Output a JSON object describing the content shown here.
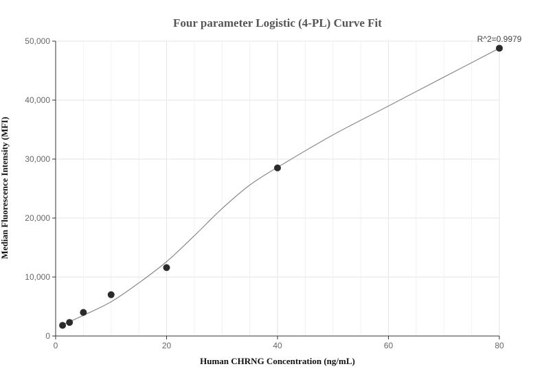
{
  "chart_data": {
    "type": "scatter",
    "title": "Four parameter Logistic (4-PL) Curve Fit",
    "xlabel": "Human CHRNG Concentration (ng/mL)",
    "ylabel": "Median Fluorescence Intensity (MFI)",
    "xlim": [
      0,
      80
    ],
    "ylim": [
      0,
      50000
    ],
    "x_ticks": [
      0,
      20,
      40,
      60,
      80
    ],
    "x_tick_labels": [
      "0",
      "20",
      "40",
      "60",
      "80"
    ],
    "y_ticks": [
      0,
      10000,
      20000,
      30000,
      40000,
      50000
    ],
    "y_tick_labels": [
      "0",
      "10,000",
      "20,000",
      "30,000",
      "40,000",
      "50,000"
    ],
    "grid": true,
    "annotation": "R^2=0.9979",
    "series": [
      {
        "kind": "points",
        "x": [
          1.25,
          2.5,
          5,
          10,
          20,
          40,
          80
        ],
        "y": [
          1800,
          2300,
          4000,
          7000,
          11600,
          28500,
          48800
        ],
        "color": "#2b2b2b"
      },
      {
        "kind": "fit-curve",
        "x": [
          1,
          5,
          10,
          15,
          20,
          25,
          30,
          35,
          40,
          50,
          60,
          70,
          80
        ],
        "y": [
          1800,
          3500,
          5800,
          9000,
          12600,
          17000,
          21600,
          25600,
          28600,
          34100,
          39000,
          43900,
          48800
        ],
        "color": "#888888"
      }
    ]
  }
}
